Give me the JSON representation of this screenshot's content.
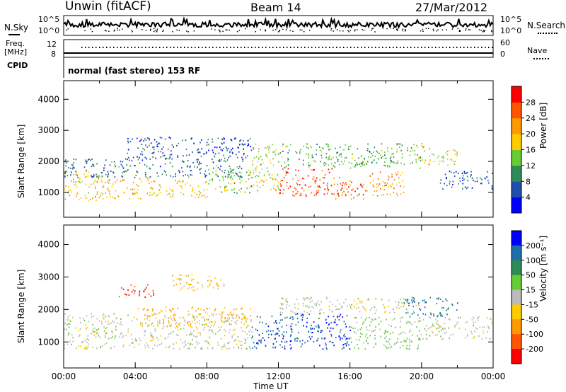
{
  "header": {
    "station": "Unwin (fitACF)",
    "beam": "Beam 14",
    "date": "27/Mar/2012"
  },
  "status_panels": {
    "nsky_label": "N.Sky",
    "nsearch_label": "N.Search",
    "noise_ticks": [
      "10^5",
      "10^0"
    ],
    "freq_label": "Freq.",
    "freq_unit": "[MHz]",
    "freq_ticks": [
      "12",
      "8"
    ],
    "nave_label": "Nave",
    "nave_ticks": [
      "60",
      "0"
    ],
    "cpid_label": "CPID",
    "cpid_text": "normal (fast stereo) 153 RF"
  },
  "colors": {
    "power_scale": [
      "#0000ff",
      "#1f4faa",
      "#2e8b57",
      "#66cc33",
      "#ffcc00",
      "#ff9900",
      "#ff5500",
      "#ff0000"
    ],
    "velocity_scale": [
      "#0000ff",
      "#1e6fa8",
      "#2e8b57",
      "#66cc33",
      "#bbbbbb",
      "#ffcc00",
      "#ff9900",
      "#ff5500",
      "#ff0000"
    ],
    "ground_scatter": "#bbbbbb"
  },
  "chart_data": [
    {
      "type": "heatmap",
      "name": "power-panel",
      "ylabel": "Slant Range [km]",
      "xlabel": "Time UT",
      "xlim": [
        0,
        24
      ],
      "ylim": [
        200,
        4600
      ],
      "y_ticks": [
        "1000",
        "2000",
        "3000",
        "4000"
      ],
      "x_ticks": [
        "00:00",
        "04:00",
        "08:00",
        "12:00",
        "16:00",
        "20:00",
        "00:00"
      ],
      "colorbar": {
        "title": "Power [dB]",
        "ticks": [
          "4",
          "8",
          "12",
          "16",
          "20",
          "24",
          "28"
        ],
        "range": [
          0,
          32
        ]
      },
      "bands": [
        {
          "t0": 0,
          "t1": 2,
          "r0": 750,
          "r1": 1700,
          "value": 18
        },
        {
          "t0": 2,
          "t1": 5,
          "r0": 800,
          "r1": 1500,
          "value": 20
        },
        {
          "t0": 5,
          "t1": 8,
          "r0": 850,
          "r1": 1400,
          "value": 18
        },
        {
          "t0": 8,
          "t1": 10.5,
          "r0": 1000,
          "r1": 1800,
          "value": 14
        },
        {
          "t0": 0,
          "t1": 10,
          "r0": 1500,
          "r1": 2100,
          "value": 8
        },
        {
          "t0": 3.5,
          "t1": 10.5,
          "r0": 2100,
          "r1": 2800,
          "value": 6
        },
        {
          "t0": 10.5,
          "t1": 12,
          "r0": 1000,
          "r1": 2600,
          "value": 16
        },
        {
          "t0": 12,
          "t1": 15,
          "r0": 900,
          "r1": 1800,
          "value": 27
        },
        {
          "t0": 15,
          "t1": 17,
          "r0": 800,
          "r1": 1500,
          "value": 26
        },
        {
          "t0": 17,
          "t1": 19,
          "r0": 900,
          "r1": 1700,
          "value": 22
        },
        {
          "t0": 12,
          "t1": 20,
          "r0": 1800,
          "r1": 2600,
          "value": 12
        },
        {
          "t0": 20,
          "t1": 22,
          "r0": 1900,
          "r1": 2500,
          "value": 18
        },
        {
          "t0": 21,
          "t1": 24,
          "r0": 1100,
          "r1": 1700,
          "value": 6
        }
      ]
    },
    {
      "type": "heatmap",
      "name": "velocity-panel",
      "ylabel": "Slant Range [km]",
      "xlabel": "Time UT",
      "xlim": [
        0,
        24
      ],
      "ylim": [
        200,
        4600
      ],
      "y_ticks": [
        "1000",
        "2000",
        "3000",
        "4000"
      ],
      "x_ticks": [
        "00:00",
        "04:00",
        "08:00",
        "12:00",
        "16:00",
        "20:00",
        "00:00"
      ],
      "colorbar": {
        "title": "Velocity [m s⁻¹]",
        "ticks": [
          "200",
          "100",
          "50",
          "15",
          "-15",
          "-50",
          "-100",
          "-200"
        ],
        "range": [
          -250,
          250
        ]
      },
      "bands": [
        {
          "t0": 0,
          "t1": 10.5,
          "r0": 800,
          "r1": 1900,
          "value": 0
        },
        {
          "t0": 4,
          "t1": 10.5,
          "r0": 1500,
          "r1": 2100,
          "value": -80
        },
        {
          "t0": 3,
          "t1": 5,
          "r0": 2400,
          "r1": 2800,
          "value": -200
        },
        {
          "t0": 6,
          "t1": 9,
          "r0": 2600,
          "r1": 3100,
          "value": -60
        },
        {
          "t0": 10.5,
          "t1": 16,
          "r0": 800,
          "r1": 1900,
          "value": 180
        },
        {
          "t0": 16,
          "t1": 20,
          "r0": 800,
          "r1": 1800,
          "value": 40
        },
        {
          "t0": 12,
          "t1": 20,
          "r0": 1900,
          "r1": 2400,
          "value": 0
        },
        {
          "t0": 19,
          "t1": 22,
          "r0": 1800,
          "r1": 2400,
          "value": 150
        },
        {
          "t0": 20,
          "t1": 24,
          "r0": 1100,
          "r1": 1800,
          "value": 0
        }
      ]
    }
  ]
}
